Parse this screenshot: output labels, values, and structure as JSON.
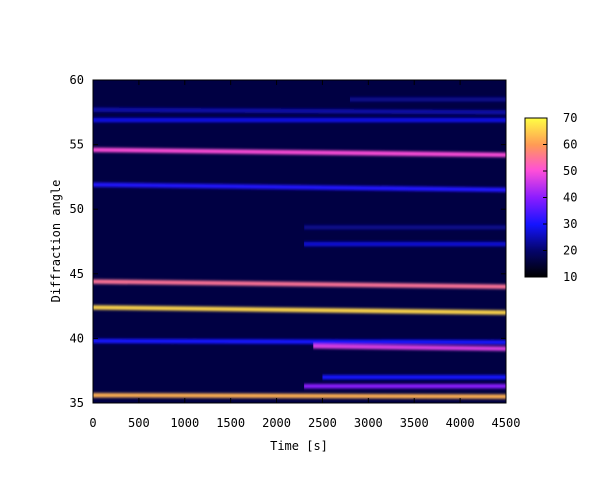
{
  "chart_data": {
    "type": "heatmap",
    "title": "",
    "xlabel": "Time [s]",
    "ylabel": "Diffraction angle",
    "xlim": [
      0,
      4500
    ],
    "ylim": [
      35,
      60
    ],
    "xticks": [
      "0",
      "500",
      "1000",
      "1500",
      "2000",
      "2500",
      "3000",
      "3500",
      "4000",
      "4500"
    ],
    "yticks": [
      "35",
      "40",
      "45",
      "50",
      "55",
      "60"
    ],
    "colorbar": {
      "range": [
        10,
        70
      ],
      "ticks": [
        "10",
        "20",
        "30",
        "40",
        "50",
        "60",
        "70"
      ],
      "palette": "black-blue-magenta-orange-yellow"
    },
    "background_intensity": 10,
    "bands": [
      {
        "x_start": 0,
        "x_end": 4500,
        "y_start": 35.6,
        "y_end": 35.5,
        "intensity": 62
      },
      {
        "x_start": 2300,
        "x_end": 4500,
        "y_start": 36.3,
        "y_end": 36.3,
        "intensity": 40
      },
      {
        "x_start": 2500,
        "x_end": 4500,
        "y_start": 37.0,
        "y_end": 37.0,
        "intensity": 30
      },
      {
        "x_start": 0,
        "x_end": 4500,
        "y_start": 39.8,
        "y_end": 39.7,
        "intensity": 30
      },
      {
        "x_start": 2400,
        "x_end": 4500,
        "y_start": 39.4,
        "y_end": 39.2,
        "intensity": 47
      },
      {
        "x_start": 0,
        "x_end": 4500,
        "y_start": 42.4,
        "y_end": 42.0,
        "intensity": 66
      },
      {
        "x_start": 0,
        "x_end": 4500,
        "y_start": 44.4,
        "y_end": 44.0,
        "intensity": 55
      },
      {
        "x_start": 2300,
        "x_end": 4500,
        "y_start": 47.3,
        "y_end": 47.3,
        "intensity": 27
      },
      {
        "x_start": 2300,
        "x_end": 4500,
        "y_start": 48.6,
        "y_end": 48.6,
        "intensity": 22
      },
      {
        "x_start": 0,
        "x_end": 4500,
        "y_start": 51.9,
        "y_end": 51.5,
        "intensity": 31
      },
      {
        "x_start": 0,
        "x_end": 4500,
        "y_start": 54.6,
        "y_end": 54.2,
        "intensity": 50
      },
      {
        "x_start": 0,
        "x_end": 4500,
        "y_start": 56.9,
        "y_end": 56.9,
        "intensity": 28
      },
      {
        "x_start": 0,
        "x_end": 4500,
        "y_start": 57.7,
        "y_end": 57.5,
        "intensity": 24
      },
      {
        "x_start": 2800,
        "x_end": 4500,
        "y_start": 58.5,
        "y_end": 58.5,
        "intensity": 22
      }
    ]
  }
}
